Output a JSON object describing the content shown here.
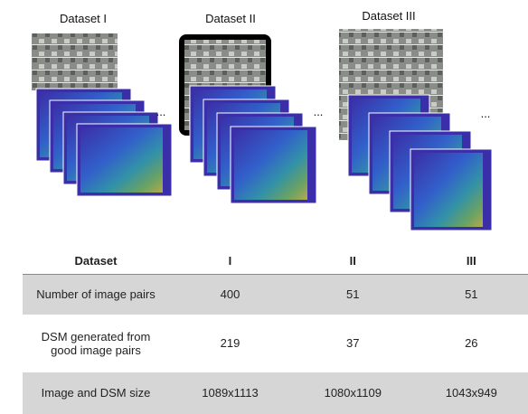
{
  "figure": {
    "panels": [
      {
        "label": "Dataset I",
        "ellipsis": "..."
      },
      {
        "label": "Dataset II",
        "ellipsis": "..."
      },
      {
        "label": "Dataset III",
        "ellipsis": "..."
      }
    ]
  },
  "table": {
    "header": [
      "Dataset",
      "I",
      "II",
      "III"
    ],
    "rows": [
      [
        "Number of image pairs",
        400,
        51,
        51
      ],
      [
        "DSM generated from good image pairs",
        219,
        37,
        26
      ],
      [
        "Image and DSM size",
        "1089x1113",
        "1080x1109",
        "1043x949"
      ]
    ]
  }
}
